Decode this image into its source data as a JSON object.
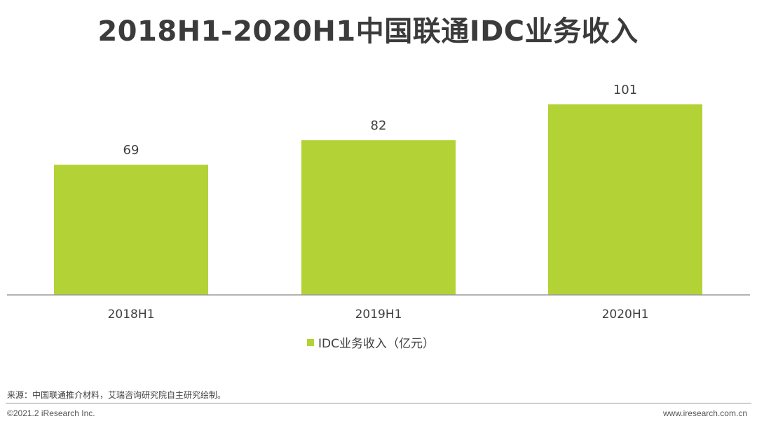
{
  "chart_data": {
    "type": "bar",
    "title": "2018H1-2020H1中国联通IDC业务收入",
    "categories": [
      "2018H1",
      "2019H1",
      "2020H1"
    ],
    "series": [
      {
        "name": "IDC业务收入（亿元）",
        "values": [
          69,
          82,
          101
        ]
      }
    ],
    "data_labels": [
      "69",
      "82",
      "101"
    ],
    "ylim": [
      0,
      101
    ],
    "color": "#b2d235",
    "grid": false,
    "legend_position": "bottom"
  },
  "footer": {
    "source": "来源：中国联通推介材料，艾瑞咨询研究院自主研究绘制。",
    "copyright": "©2021.2 iResearch Inc.",
    "site": "www.iresearch.com.cn"
  }
}
